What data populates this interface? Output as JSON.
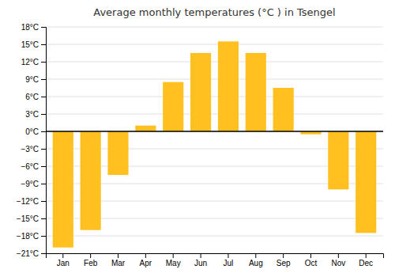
{
  "chart_data": {
    "type": "bar",
    "title": "Average monthly temperatures (°C ) in Tsengel",
    "categories": [
      "Jan",
      "Feb",
      "Mar",
      "Apr",
      "May",
      "Jun",
      "Jul",
      "Aug",
      "Sep",
      "Oct",
      "Nov",
      "Dec"
    ],
    "values": [
      -20,
      -17,
      -7.5,
      1,
      8.5,
      13.5,
      15.5,
      13.5,
      7.5,
      -0.5,
      -10,
      -17.5
    ],
    "color": "#FFC020",
    "ylim": [
      -21,
      18
    ],
    "yticks": [
      {
        "value": -21,
        "label": "−21°C"
      },
      {
        "value": -18,
        "label": "−18°C"
      },
      {
        "value": -15,
        "label": "−15°C"
      },
      {
        "value": -12,
        "label": "−12°C"
      },
      {
        "value": -9,
        "label": "−9°C"
      },
      {
        "value": -6,
        "label": "−6°C"
      },
      {
        "value": -3,
        "label": "−3°C"
      },
      {
        "value": 0,
        "label": "0°C"
      },
      {
        "value": 3,
        "label": "3°C"
      },
      {
        "value": 6,
        "label": "6°C"
      },
      {
        "value": 9,
        "label": "9°C"
      },
      {
        "value": 12,
        "label": "12°C"
      },
      {
        "value": 15,
        "label": "15°C"
      },
      {
        "value": 18,
        "label": "18°C"
      }
    ],
    "grid": true
  }
}
